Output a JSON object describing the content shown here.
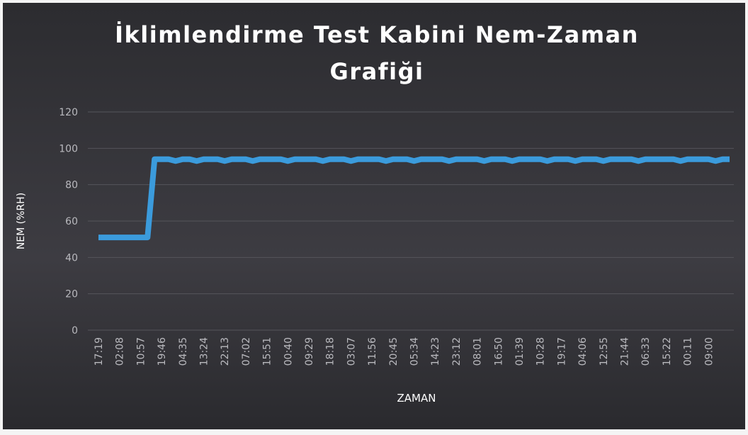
{
  "chart_data": {
    "type": "line",
    "title": [
      "İklimlendirme Test Kabini Nem-Zaman",
      "Grafiği"
    ],
    "y_label": "NEM (%RH)",
    "x_label": "ZAMAN",
    "categories": [
      "17:19",
      null,
      null,
      "02:08",
      null,
      null,
      "10:57",
      null,
      null,
      "19:46",
      null,
      null,
      "04:35",
      null,
      null,
      "13:24",
      null,
      null,
      "22:13",
      null,
      null,
      "07:02",
      null,
      null,
      "15:51",
      null,
      null,
      "00:40",
      null,
      null,
      "09:29",
      null,
      null,
      "18:18",
      null,
      null,
      "03:07",
      null,
      null,
      "11:56",
      null,
      null,
      "20:45",
      null,
      null,
      "05:34",
      null,
      null,
      "14:23",
      null,
      null,
      "23:12",
      null,
      null,
      "08:01",
      null,
      null,
      "16:50",
      null,
      null,
      "01:39",
      null,
      null,
      "10:28",
      null,
      null,
      "19:17",
      null,
      null,
      "04:06",
      null,
      null,
      "12:55",
      null,
      null,
      "21:44",
      null,
      null,
      "06:33",
      null,
      null,
      "15:22",
      null,
      null,
      "00:11",
      null,
      null,
      "09:00",
      null,
      null,
      null
    ],
    "series": [
      {
        "name": "NEM",
        "color": "#3b9bdc",
        "values": [
          51,
          51,
          51,
          51,
          51,
          51,
          51,
          51,
          94,
          94,
          94,
          93,
          94,
          94,
          93,
          94,
          94,
          94,
          93,
          94,
          94,
          94,
          93,
          94,
          94,
          94,
          94,
          93,
          94,
          94,
          94,
          94,
          93,
          94,
          94,
          94,
          93,
          94,
          94,
          94,
          94,
          93,
          94,
          94,
          94,
          93,
          94,
          94,
          94,
          94,
          93,
          94,
          94,
          94,
          94,
          93,
          94,
          94,
          94,
          93,
          94,
          94,
          94,
          94,
          93,
          94,
          94,
          94,
          93,
          94,
          94,
          94,
          93,
          94,
          94,
          94,
          94,
          93,
          94,
          94,
          94,
          94,
          94,
          93,
          94,
          94,
          94,
          94,
          93,
          94,
          94
        ]
      }
    ],
    "ylim": [
      0,
      120
    ],
    "yticks": [
      0,
      20,
      40,
      60,
      80,
      100,
      120
    ],
    "grid": true
  }
}
